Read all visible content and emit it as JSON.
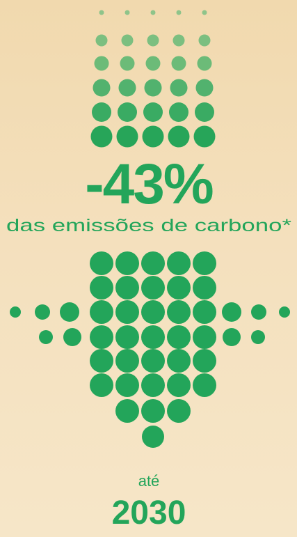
{
  "headline": "-43%",
  "subtitle": "das emissões de carbono*",
  "until_label": "até",
  "year": "2030"
}
